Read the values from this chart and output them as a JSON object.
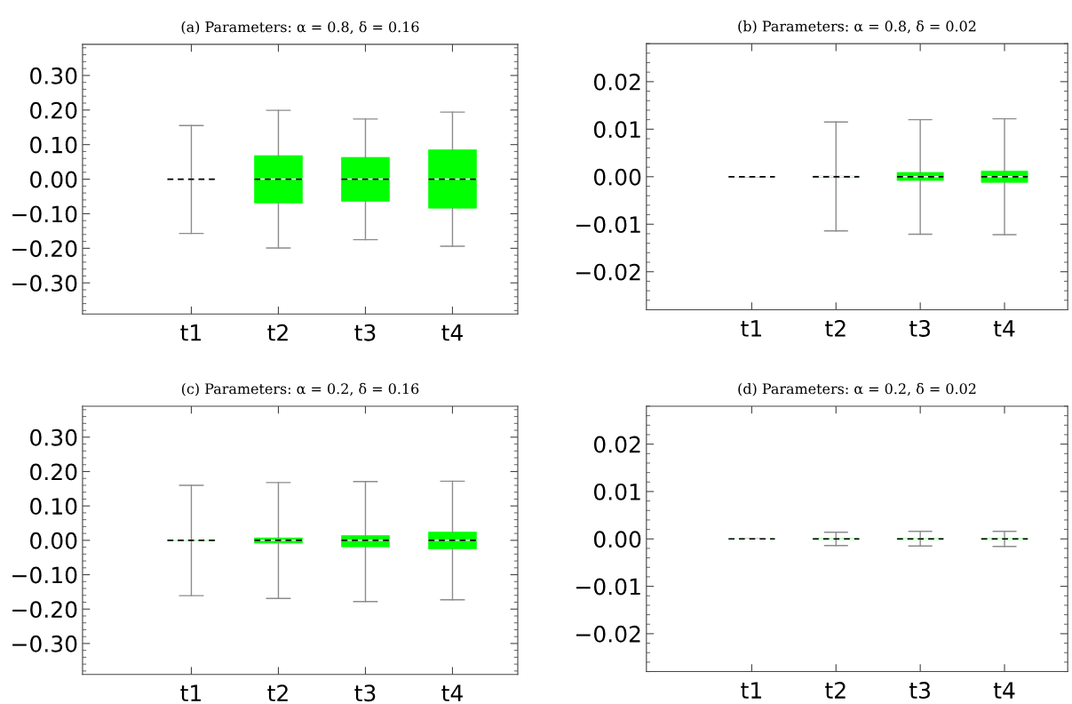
{
  "chart_data": [
    {
      "type": "box",
      "title": "(a) Parameters: α = 0.8, δ = 0.16",
      "categories": [
        "t1",
        "t2",
        "t3",
        "t4"
      ],
      "ylim": [
        -0.39,
        0.39
      ],
      "yticks": [
        {
          "value": -0.3,
          "label": "−0.30"
        },
        {
          "value": -0.2,
          "label": "−0.20"
        },
        {
          "value": -0.1,
          "label": "−0.10"
        },
        {
          "value": 0,
          "label": "0.00"
        },
        {
          "value": 0.1,
          "label": "0.10"
        },
        {
          "value": 0.2,
          "label": "0.20"
        },
        {
          "value": 0.3,
          "label": "0.30"
        }
      ],
      "series": [
        {
          "color": "#00ff00",
          "boxes": [
            {
              "low": -0.157,
              "q1": 0,
              "median": 0,
              "q3": 0,
              "high": 0.155,
              "mean": 0
            },
            {
              "low": -0.199,
              "q1": -0.069,
              "median": 0,
              "q3": 0.068,
              "high": 0.199,
              "mean": 0
            },
            {
              "low": -0.175,
              "q1": -0.064,
              "median": 0,
              "q3": 0.063,
              "high": 0.174,
              "mean": 0
            },
            {
              "low": -0.194,
              "q1": -0.084,
              "median": 0,
              "q3": 0.085,
              "high": 0.194,
              "mean": 0
            }
          ]
        }
      ]
    },
    {
      "type": "box",
      "title": "(b) Parameters: α = 0.8, δ = 0.02",
      "categories": [
        "t1",
        "t2",
        "t3",
        "t4"
      ],
      "ylim": [
        -0.028,
        0.028
      ],
      "yticks": [
        {
          "value": -0.02,
          "label": "−0.02"
        },
        {
          "value": -0.01,
          "label": "−0.01"
        },
        {
          "value": 0,
          "label": "0.00"
        },
        {
          "value": 0.01,
          "label": "0.01"
        },
        {
          "value": 0.02,
          "label": "0.02"
        }
      ],
      "series": [
        {
          "color": "#00ff00",
          "boxes": [
            {
              "low": 0,
              "q1": 0,
              "median": 0,
              "q3": 0,
              "high": 0,
              "mean": 0
            },
            {
              "low": -0.0114,
              "q1": -0.0001,
              "median": 0,
              "q3": 0.0001,
              "high": 0.0115,
              "mean": 0
            },
            {
              "low": -0.0121,
              "q1": -0.0008,
              "median": 0,
              "q3": 0.0009,
              "high": 0.012,
              "mean": 0
            },
            {
              "low": -0.0122,
              "q1": -0.0012,
              "median": 0,
              "q3": 0.0012,
              "high": 0.0122,
              "mean": 0
            }
          ]
        }
      ]
    },
    {
      "type": "box",
      "title": "(c) Parameters: α = 0.2, δ = 0.16",
      "categories": [
        "t1",
        "t2",
        "t3",
        "t4"
      ],
      "ylim": [
        -0.39,
        0.39
      ],
      "yticks": [
        {
          "value": -0.3,
          "label": "−0.30"
        },
        {
          "value": -0.2,
          "label": "−0.20"
        },
        {
          "value": -0.1,
          "label": "−0.10"
        },
        {
          "value": 0,
          "label": "0.00"
        },
        {
          "value": 0.1,
          "label": "0.10"
        },
        {
          "value": 0.2,
          "label": "0.20"
        },
        {
          "value": 0.3,
          "label": "0.30"
        }
      ],
      "series": [
        {
          "color": "#00ff00",
          "boxes": [
            {
              "low": -0.161,
              "q1": 0,
              "median": 0,
              "q3": 0,
              "high": 0.16,
              "mean": 0
            },
            {
              "low": -0.169,
              "q1": -0.008,
              "median": 0,
              "q3": 0.007,
              "high": 0.168,
              "mean": 0
            },
            {
              "low": -0.178,
              "q1": -0.019,
              "median": 0,
              "q3": 0.014,
              "high": 0.171,
              "mean": 0
            },
            {
              "low": -0.173,
              "q1": -0.025,
              "median": 0,
              "q3": 0.024,
              "high": 0.172,
              "mean": 0
            }
          ]
        }
      ]
    },
    {
      "type": "box",
      "title": "(d) Parameters: α = 0.2, δ = 0.02",
      "categories": [
        "t1",
        "t2",
        "t3",
        "t4"
      ],
      "ylim": [
        -0.028,
        0.028
      ],
      "yticks": [
        {
          "value": -0.02,
          "label": "−0.02"
        },
        {
          "value": -0.01,
          "label": "−0.01"
        },
        {
          "value": 0,
          "label": "0.00"
        },
        {
          "value": 0.01,
          "label": "0.01"
        },
        {
          "value": 0.02,
          "label": "0.02"
        }
      ],
      "series": [
        {
          "color": "#00ff00",
          "boxes": [
            {
              "low": 0,
              "q1": 0,
              "median": 0,
              "q3": 0,
              "high": 0,
              "mean": 0
            },
            {
              "low": -0.0014,
              "q1": -0.0001,
              "median": 0,
              "q3": 0.0001,
              "high": 0.0014,
              "mean": 0
            },
            {
              "low": -0.0015,
              "q1": -0.0001,
              "median": 0,
              "q3": 0.0001,
              "high": 0.0016,
              "mean": 0
            },
            {
              "low": -0.0016,
              "q1": -0.0001,
              "median": 0,
              "q3": 0.0001,
              "high": 0.0016,
              "mean": 0
            }
          ]
        }
      ]
    }
  ]
}
